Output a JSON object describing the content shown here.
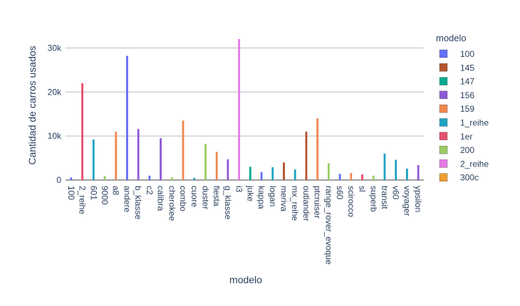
{
  "chart_data": {
    "type": "bar",
    "xlabel": "modelo",
    "ylabel": "Cantidad de carros usados",
    "ylim": [
      0,
      32000
    ],
    "yticks": [
      0,
      10000,
      20000,
      30000
    ],
    "ytick_labels": [
      "0",
      "10k",
      "20k",
      "30k"
    ],
    "grid": true,
    "legend_title": "modelo",
    "legend_position": "right",
    "legend_items": [
      {
        "name": "100",
        "color": "#636efa"
      },
      {
        "name": "145",
        "color": "#b5532e"
      },
      {
        "name": "147",
        "color": "#00a88f"
      },
      {
        "name": "156",
        "color": "#8e5ad6"
      },
      {
        "name": "159",
        "color": "#f0884f"
      },
      {
        "name": "1_reihe",
        "color": "#1fa3c2"
      },
      {
        "name": "1er",
        "color": "#e8506e"
      },
      {
        "name": "200",
        "color": "#9ccc65"
      },
      {
        "name": "2_reihe",
        "color": "#e67ae6"
      },
      {
        "name": "300c",
        "color": "#f0a030"
      }
    ],
    "categories": [
      "100",
      "2_reihe",
      "601",
      "9000",
      "a8",
      "andere",
      "b_klasse",
      "c2",
      "calibra",
      "cherokee",
      "combo",
      "cuore",
      "duster",
      "fiesta",
      "g_klasse",
      "i3",
      "juke",
      "kappa",
      "logan",
      "meriva",
      "mx_reihe",
      "outlander",
      "ptcruiser",
      "range_rover_evoque",
      "s60",
      "scirocco",
      "sl",
      "superb",
      "transit",
      "v60",
      "voyager",
      "ypsilon"
    ],
    "values": [
      600,
      22000,
      9200,
      900,
      11000,
      28200,
      11600,
      1000,
      9500,
      600,
      13500,
      500,
      8200,
      6400,
      4700,
      32000,
      3000,
      1800,
      2900,
      4000,
      2400,
      11000,
      14000,
      3800,
      1400,
      1600,
      1300,
      1000,
      6000,
      4600,
      2600,
      3400
    ],
    "colors": [
      "#636efa",
      "#e8506e",
      "#1fa3c2",
      "#9ccc65",
      "#f0884f",
      "#636efa",
      "#8e5ad6",
      "#636efa",
      "#8e5ad6",
      "#9ccc65",
      "#f0884f",
      "#1fa3c2",
      "#9ccc65",
      "#f0884f",
      "#8e5ad6",
      "#e67ae6",
      "#00a88f",
      "#636efa",
      "#1fa3c2",
      "#b5532e",
      "#1fa3c2",
      "#b5532e",
      "#f0884f",
      "#9ccc65",
      "#636efa",
      "#f0884f",
      "#e8506e",
      "#9ccc65",
      "#1fa3c2",
      "#1fa3c2",
      "#1fa3c2",
      "#8e5ad6"
    ]
  }
}
